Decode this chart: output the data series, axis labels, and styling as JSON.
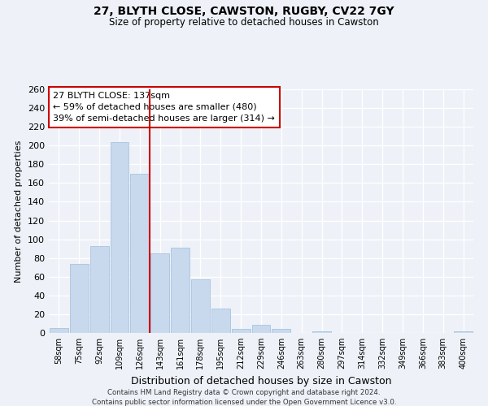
{
  "title_line1": "27, BLYTH CLOSE, CAWSTON, RUGBY, CV22 7GY",
  "title_line2": "Size of property relative to detached houses in Cawston",
  "xlabel": "Distribution of detached houses by size in Cawston",
  "ylabel": "Number of detached properties",
  "bar_labels": [
    "58sqm",
    "75sqm",
    "92sqm",
    "109sqm",
    "126sqm",
    "143sqm",
    "161sqm",
    "178sqm",
    "195sqm",
    "212sqm",
    "229sqm",
    "246sqm",
    "263sqm",
    "280sqm",
    "297sqm",
    "314sqm",
    "332sqm",
    "349sqm",
    "366sqm",
    "383sqm",
    "400sqm"
  ],
  "bar_heights": [
    5,
    74,
    93,
    204,
    170,
    85,
    91,
    57,
    26,
    4,
    9,
    4,
    0,
    2,
    0,
    0,
    0,
    0,
    0,
    0,
    2
  ],
  "bar_color": "#c8d9ed",
  "bar_edge_color": "#a8c4e0",
  "vline_color": "#cc0000",
  "annotation_title": "27 BLYTH CLOSE: 137sqm",
  "annotation_line2": "← 59% of detached houses are smaller (480)",
  "annotation_line3": "39% of semi-detached houses are larger (314) →",
  "ylim": [
    0,
    260
  ],
  "yticks": [
    0,
    20,
    40,
    60,
    80,
    100,
    120,
    140,
    160,
    180,
    200,
    220,
    240,
    260
  ],
  "footer_line1": "Contains HM Land Registry data © Crown copyright and database right 2024.",
  "footer_line2": "Contains public sector information licensed under the Open Government Licence v3.0.",
  "bg_color": "#eef2f8"
}
